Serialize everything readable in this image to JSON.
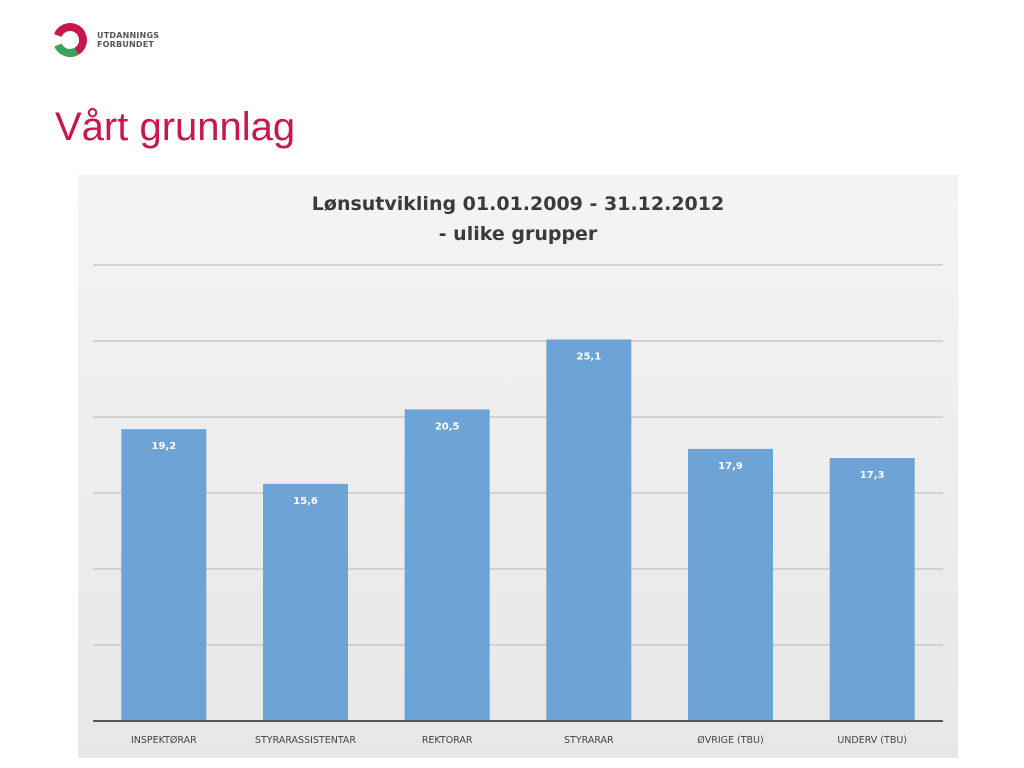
{
  "header": {
    "logo_line1": "UTDANNINGS",
    "logo_line2": "FORBUNDET",
    "title": "Vårt grunnlag"
  },
  "colors": {
    "title": "#c8174d",
    "logo_red": "#c8174d",
    "logo_green": "#3aa55a",
    "bar": "#6ea3d6",
    "grid": "#c9c9c9",
    "axis": "#555555"
  },
  "chart_data": {
    "type": "bar",
    "title_line1": "Lønsutvikling 01.01.2009 - 31.12.2012",
    "title_line2": "- ulike grupper",
    "categories": [
      "INSPEKTØRAR",
      "STYRARASSISTENTAR",
      "REKTORAR",
      "STYRARAR",
      "ØVRIGE (TBU)",
      "UNDERV (TBU)"
    ],
    "values": [
      19.2,
      15.6,
      20.5,
      25.1,
      17.9,
      17.3
    ],
    "labels": [
      "19,2",
      "15,6",
      "20,5",
      "25,1",
      "17,9",
      "17,3"
    ],
    "ylim": [
      0,
      30
    ],
    "grid": true,
    "y_tick_labels_shown": false,
    "legend": "none"
  }
}
